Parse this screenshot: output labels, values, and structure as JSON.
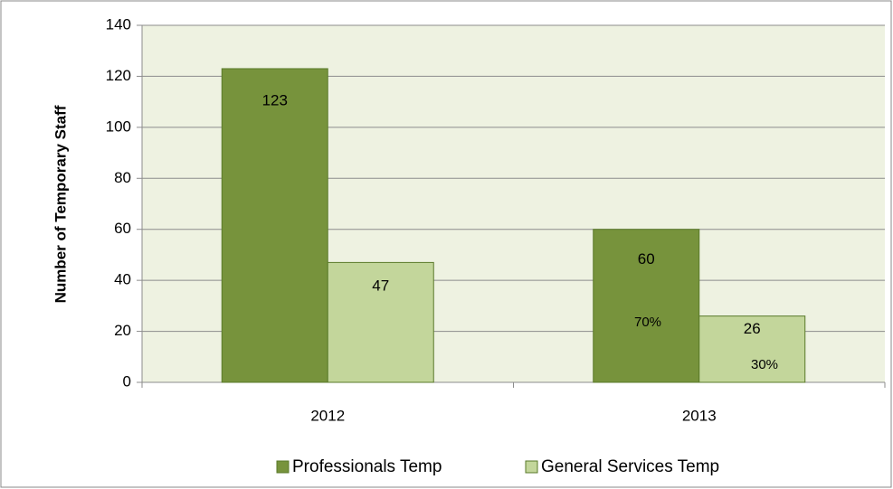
{
  "chart_data": {
    "type": "bar",
    "y_label": "Number of Temporary Staff",
    "categories": [
      "2012",
      "2013"
    ],
    "series": [
      {
        "name": "Professionals Temp",
        "color": "#77933c",
        "values": [
          123,
          60
        ]
      },
      {
        "name": "General Services Temp",
        "color": "#c3d69b",
        "values": [
          47,
          26
        ]
      }
    ],
    "annotations": [
      "70%",
      "30%"
    ],
    "ylim": [
      0,
      140
    ],
    "yticks": [
      0,
      20,
      40,
      60,
      80,
      100,
      120,
      140
    ],
    "grid": true,
    "legend": "bottom"
  }
}
